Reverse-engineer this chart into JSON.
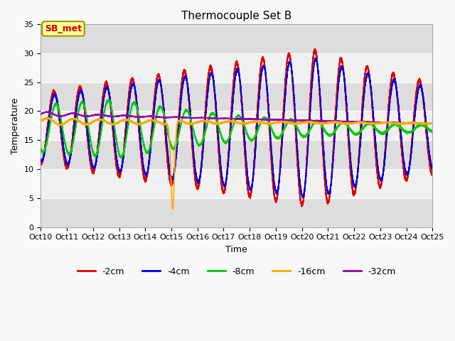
{
  "title": "Thermocouple Set B",
  "xlabel": "Time",
  "ylabel": "Temperature",
  "ylim": [
    0,
    35
  ],
  "ytick_vals": [
    0,
    5,
    10,
    15,
    20,
    25,
    30,
    35
  ],
  "xtick_labels": [
    "Oct 10",
    "Oct 11",
    "Oct 12",
    "Oct 13",
    "Oct 14",
    "Oct 15",
    "Oct 16",
    "Oct 17",
    "Oct 18",
    "Oct 19",
    "Oct 20",
    "Oct 21",
    "Oct 22",
    "Oct 23",
    "Oct 24",
    "Oct 25"
  ],
  "colors": {
    "-2cm": "#dd0000",
    "-4cm": "#0000dd",
    "-8cm": "#00cc00",
    "-16cm": "#ffaa00",
    "-32cm": "#9900aa"
  },
  "annotation_text": "SB_met",
  "annotation_color": "#cc0000",
  "annotation_bg": "#ffff99",
  "annotation_edge": "#999900",
  "plot_bg_light": "#f0f0f0",
  "plot_bg_dark": "#dddddd",
  "fig_bg": "#f8f8f8",
  "grid_color": "#ffffff",
  "title_fontsize": 11,
  "label_fontsize": 9,
  "tick_fontsize": 8,
  "legend_fontsize": 9,
  "linewidth": 1.2
}
